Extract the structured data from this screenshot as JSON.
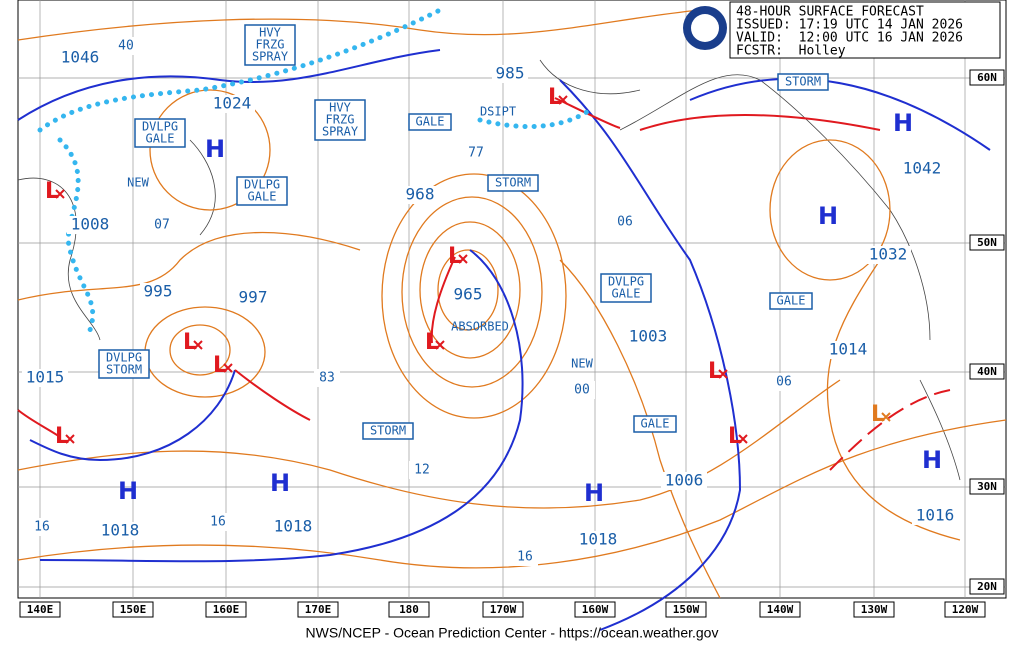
{
  "header": {
    "lines": [
      "48-HOUR SURFACE FORECAST",
      "ISSUED: 17:19 UTC 14 JAN 2026",
      "VALID:  12:00 UTC 16 JAN 2026",
      "FCSTR:  Holley"
    ]
  },
  "pressure_labels": [
    "1046",
    "40",
    "1024",
    "1008",
    "07",
    "995",
    "997",
    "1015",
    "83",
    "968",
    "77",
    "965",
    "985",
    "06",
    "1003",
    "00",
    "1006",
    "1018",
    "1018",
    "1018",
    "12",
    "16",
    "16",
    "16",
    "1042",
    "1032",
    "1014",
    "06",
    "1016"
  ],
  "warning_labels": [
    [
      "HVY",
      "FRZG",
      "SPRAY"
    ],
    [
      "HVY",
      "FRZG",
      "SPRAY"
    ],
    [
      "DVLPG",
      "GALE"
    ],
    [
      "DVLPG",
      "GALE"
    ],
    [
      "GALE"
    ],
    [
      "STORM"
    ],
    [
      "STORM"
    ],
    [
      "DVLPG",
      "GALE"
    ],
    [
      "GALE"
    ],
    [
      "DVLPG",
      "STORM"
    ],
    [
      "STORM"
    ],
    [
      "GALE"
    ]
  ],
  "plain_labels": [
    "NEW",
    "NEW",
    "DSIPT",
    "ABSORBED"
  ],
  "highs": [
    "H",
    "H",
    "H",
    "H",
    "H",
    "H",
    "H"
  ],
  "lows": [
    "L",
    "L",
    "L",
    "L",
    "L",
    "L",
    "L",
    "L",
    "L",
    "L"
  ],
  "longitudes": [
    "140E",
    "150E",
    "160E",
    "170E",
    "180",
    "170W",
    "160W",
    "150W",
    "140W",
    "130W",
    "120W"
  ],
  "latitudes": [
    "60N",
    "50N",
    "40N",
    "30N",
    "20N"
  ],
  "footer": "NWS/NCEP - Ocean Prediction Center - https://ocean.weather.gov"
}
